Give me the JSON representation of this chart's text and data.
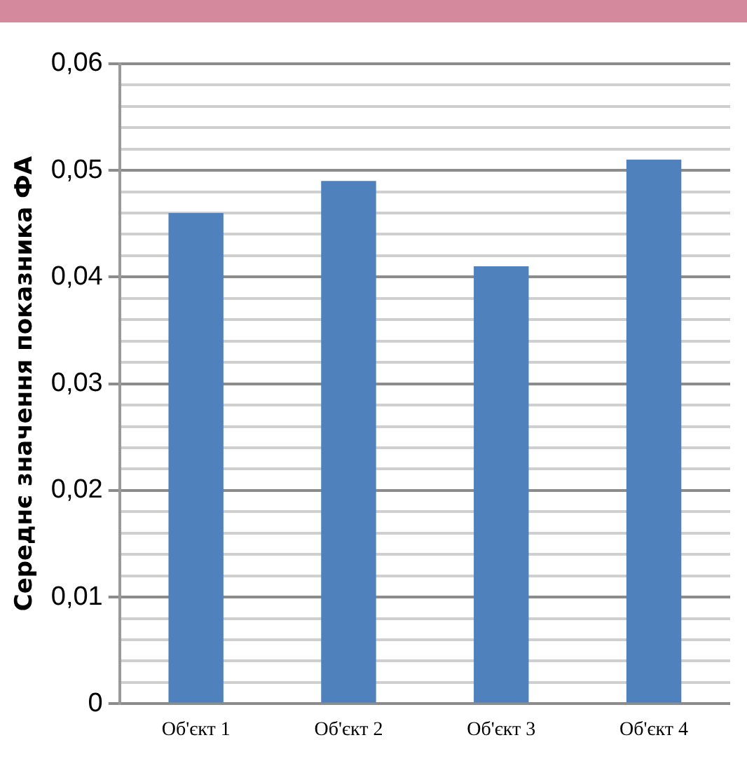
{
  "chart_data": {
    "type": "bar",
    "ylabel": "Середнє значення показника ФА",
    "categories": [
      "Об'єкт 1",
      "Об'єкт 2",
      "Об'єкт 3",
      "Об'єкт 4"
    ],
    "values": [
      0.046,
      0.049,
      0.041,
      0.051
    ],
    "color": "#4f81bd",
    "ylim": [
      0,
      0.06
    ],
    "yticks": [
      0,
      {
        "value": 0.002,
        "label": null
      },
      {
        "value": 0.004,
        "label": null
      },
      {
        "value": 0.006,
        "label": null
      },
      {
        "value": 0.008,
        "label": null
      },
      {
        "value": 0.01,
        "label": "0,01"
      },
      {
        "value": 0.012,
        "label": null
      },
      {
        "value": 0.014,
        "label": null
      },
      {
        "value": 0.016,
        "label": null
      },
      {
        "value": 0.018,
        "label": null
      },
      {
        "value": 0.02,
        "label": "0,02"
      },
      {
        "value": 0.022,
        "label": null
      },
      {
        "value": 0.024,
        "label": null
      },
      {
        "value": 0.026,
        "label": null
      },
      {
        "value": 0.028,
        "label": null
      },
      {
        "value": 0.03,
        "label": "0,03"
      },
      {
        "value": 0.032,
        "label": null
      },
      {
        "value": 0.034,
        "label": null
      },
      {
        "value": 0.036,
        "label": null
      },
      {
        "value": 0.038,
        "label": null
      },
      {
        "value": 0.04,
        "label": "0,04"
      },
      {
        "value": 0.042,
        "label": null
      },
      {
        "value": 0.044,
        "label": null
      },
      {
        "value": 0.046,
        "label": null
      },
      {
        "value": 0.048,
        "label": null
      },
      {
        "value": 0.05,
        "label": "0,05"
      },
      {
        "value": 0.052,
        "label": null
      },
      {
        "value": 0.054,
        "label": null
      },
      {
        "value": 0.056,
        "label": null
      },
      {
        "value": 0.058,
        "label": null
      },
      {
        "value": 0.06,
        "label": "0,06"
      }
    ],
    "grid": true,
    "legend": false
  }
}
